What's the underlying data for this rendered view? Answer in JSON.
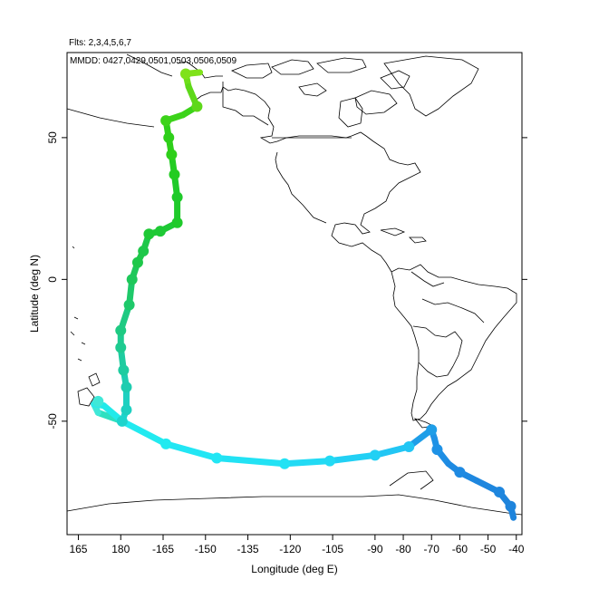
{
  "header": {
    "flights_line": "Flts: 2,3,4,5,6,7",
    "dates_line": "MMDD: 0427,0429,0501,0503,0506,0509"
  },
  "axes": {
    "xlabel": "Longitude (deg E)",
    "ylabel": "Latitude (deg N)",
    "x_ticks": [
      "165",
      "180",
      "-165",
      "-150",
      "-135",
      "-120",
      "-105",
      "-90",
      "-80",
      "-70",
      "-60",
      "-50",
      "-40"
    ],
    "y_ticks": [
      "50",
      "0",
      "-50"
    ]
  },
  "chart_data": {
    "type": "map-flight-track",
    "xlabel": "Longitude (deg E)",
    "ylabel": "Latitude (deg N)",
    "xlim": [
      161,
      322
    ],
    "ylim": [
      -90,
      80
    ],
    "x_tick_values": [
      165,
      180,
      195,
      210,
      225,
      240,
      255,
      270,
      280,
      290,
      300,
      310,
      320
    ],
    "y_tick_values": [
      50,
      0,
      -50
    ],
    "track": [
      {
        "lon": 208,
        "lat": 73,
        "color": "#7fe21a"
      },
      {
        "lon": 203,
        "lat": 72.5,
        "color": "#7fe21a"
      },
      {
        "lon": 204,
        "lat": 68,
        "color": "#6ede1a"
      },
      {
        "lon": 207,
        "lat": 61,
        "color": "#5ed81a"
      },
      {
        "lon": 202,
        "lat": 58,
        "color": "#3cd31a"
      },
      {
        "lon": 196,
        "lat": 56,
        "color": "#3cd31a"
      },
      {
        "lon": 197,
        "lat": 50,
        "color": "#2ecf1a"
      },
      {
        "lon": 198,
        "lat": 44,
        "color": "#2ecf1a"
      },
      {
        "lon": 199,
        "lat": 37,
        "color": "#22cc22"
      },
      {
        "lon": 200,
        "lat": 29,
        "color": "#1fca2a"
      },
      {
        "lon": 200,
        "lat": 20,
        "color": "#1fca2a"
      },
      {
        "lon": 194,
        "lat": 17,
        "color": "#1ec935"
      },
      {
        "lon": 190,
        "lat": 16,
        "color": "#1ec935"
      },
      {
        "lon": 188,
        "lat": 10,
        "color": "#1ec84a"
      },
      {
        "lon": 186,
        "lat": 6,
        "color": "#1ec84a"
      },
      {
        "lon": 184,
        "lat": 0,
        "color": "#1ec85a"
      },
      {
        "lon": 183,
        "lat": -9,
        "color": "#1ec96a"
      },
      {
        "lon": 180,
        "lat": -18,
        "color": "#1eca82"
      },
      {
        "lon": 180,
        "lat": -24,
        "color": "#1ecb90"
      },
      {
        "lon": 181,
        "lat": -32,
        "color": "#1eccA0"
      },
      {
        "lon": 182,
        "lat": -38,
        "color": "#1ecdb0"
      },
      {
        "lon": 182,
        "lat": -46,
        "color": "#1ed0c0"
      },
      {
        "lon": 180.5,
        "lat": -50,
        "color": "#1ed4cc"
      },
      {
        "lon": 172,
        "lat": -47,
        "color": "#2ee0c0"
      },
      {
        "lon": 170.5,
        "lat": -44,
        "color": "#40e8d8"
      },
      {
        "lon": 174,
        "lat": -44.5,
        "color": "#30e8e8"
      },
      {
        "lon": 180.5,
        "lat": -50,
        "color": "#22eaea"
      },
      {
        "lon": 196,
        "lat": -58,
        "color": "#22eaf0"
      },
      {
        "lon": 214,
        "lat": -63,
        "color": "#22e6f4"
      },
      {
        "lon": 238,
        "lat": -65,
        "color": "#22e2f4"
      },
      {
        "lon": 254,
        "lat": -64,
        "color": "#22daf4"
      },
      {
        "lon": 270,
        "lat": -62,
        "color": "#22d0f4"
      },
      {
        "lon": 282,
        "lat": -59,
        "color": "#22c6f4"
      },
      {
        "lon": 290,
        "lat": -53,
        "color": "#1e9ee8"
      },
      {
        "lon": 291,
        "lat": -56,
        "color": "#1e96e6"
      },
      {
        "lon": 292,
        "lat": -60,
        "color": "#1e92e6"
      },
      {
        "lon": 296,
        "lat": -65,
        "color": "#1e8ee4"
      },
      {
        "lon": 300,
        "lat": -68,
        "color": "#1e8ae2"
      },
      {
        "lon": 306,
        "lat": -71,
        "color": "#1e88e0"
      },
      {
        "lon": 314,
        "lat": -75,
        "color": "#1e86de"
      },
      {
        "lon": 318,
        "lat": -80,
        "color": "#1e84dc"
      },
      {
        "lon": 319,
        "lat": -84,
        "color": "#1e84dc"
      }
    ],
    "stops": [
      {
        "lon": 203,
        "lat": 72.5
      },
      {
        "lon": 207,
        "lat": 61
      },
      {
        "lon": 196,
        "lat": 56
      },
      {
        "lon": 197,
        "lat": 50
      },
      {
        "lon": 198,
        "lat": 44
      },
      {
        "lon": 199,
        "lat": 37
      },
      {
        "lon": 200,
        "lat": 29
      },
      {
        "lon": 200,
        "lat": 20
      },
      {
        "lon": 194,
        "lat": 17
      },
      {
        "lon": 190,
        "lat": 16
      },
      {
        "lon": 188,
        "lat": 10
      },
      {
        "lon": 186,
        "lat": 6
      },
      {
        "lon": 184,
        "lat": 0
      },
      {
        "lon": 183,
        "lat": -9
      },
      {
        "lon": 180,
        "lat": -18
      },
      {
        "lon": 180,
        "lat": -24
      },
      {
        "lon": 181,
        "lat": -32
      },
      {
        "lon": 182,
        "lat": -38
      },
      {
        "lon": 182,
        "lat": -46
      },
      {
        "lon": 180.5,
        "lat": -50
      },
      {
        "lon": 172,
        "lat": -43
      },
      {
        "lon": 196,
        "lat": -58
      },
      {
        "lon": 214,
        "lat": -63
      },
      {
        "lon": 238,
        "lat": -65
      },
      {
        "lon": 254,
        "lat": -64
      },
      {
        "lon": 270,
        "lat": -62
      },
      {
        "lon": 282,
        "lat": -59
      },
      {
        "lon": 290,
        "lat": -53
      },
      {
        "lon": 292,
        "lat": -60
      },
      {
        "lon": 300,
        "lat": -68
      },
      {
        "lon": 314,
        "lat": -75
      },
      {
        "lon": 318,
        "lat": -80
      }
    ]
  }
}
